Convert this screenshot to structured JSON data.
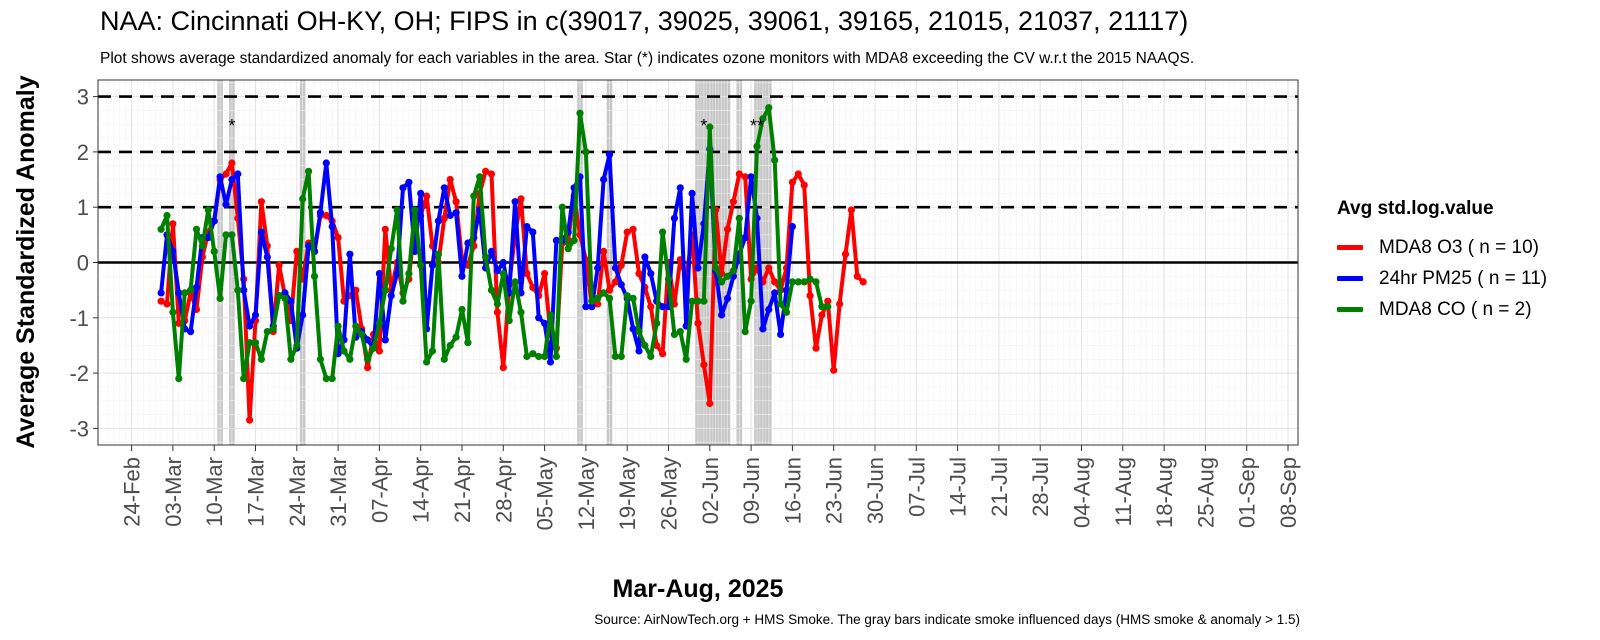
{
  "chart_data": {
    "type": "line",
    "title": "NAA: Cincinnati OH-KY, OH; FIPS in c(39017, 39025, 39061, 39165, 21015, 21037, 21117)",
    "subtitle": "Plot shows average standardized anomaly for each variables in the area. Star (*) indicates ozone monitors with MDA8 exceeding the CV w.r.t the 2015 NAAQS.",
    "caption": "Source: AirNowTech.org + HMS Smoke. The gray bars indicate smoke influenced days (HMS smoke & anomaly > 1.5)",
    "xlabel": "Mar-Aug, 2025",
    "ylabel": "Average Standardized Anomaly",
    "legend_title": "Avg std.log.value",
    "legend_position": "right",
    "ylim": [
      -3.3,
      3.3
    ],
    "xlim": [
      "2025-02-20",
      "2025-09-08"
    ],
    "y_ticks": [
      3,
      2,
      1,
      0,
      -1,
      -2,
      -3
    ],
    "x_ticks": [
      "24-Feb",
      "03-Mar",
      "10-Mar",
      "17-Mar",
      "24-Mar",
      "31-Mar",
      "07-Apr",
      "14-Apr",
      "21-Apr",
      "28-Apr",
      "05-May",
      "12-May",
      "19-May",
      "26-May",
      "02-Jun",
      "09-Jun",
      "16-Jun",
      "23-Jun",
      "30-Jun",
      "07-Jul",
      "14-Jul",
      "21-Jul",
      "28-Jul",
      "04-Aug",
      "11-Aug",
      "18-Aug",
      "25-Aug",
      "01-Sep",
      "08-Sep"
    ],
    "x_tick_dates": [
      "2025-02-24",
      "2025-03-03",
      "2025-03-10",
      "2025-03-17",
      "2025-03-24",
      "2025-03-31",
      "2025-04-07",
      "2025-04-14",
      "2025-04-21",
      "2025-04-28",
      "2025-05-05",
      "2025-05-12",
      "2025-05-19",
      "2025-05-26",
      "2025-06-02",
      "2025-06-09",
      "2025-06-16",
      "2025-06-23",
      "2025-06-30",
      "2025-07-07",
      "2025-07-14",
      "2025-07-21",
      "2025-07-28",
      "2025-08-04",
      "2025-08-11",
      "2025-08-18",
      "2025-08-25",
      "2025-09-01",
      "2025-09-08"
    ],
    "grid": true,
    "dashed_reference_lines": [
      1,
      2,
      3
    ],
    "zero_line": 0,
    "smoke_days": [
      "2025-03-11",
      "2025-03-13",
      "2025-03-25",
      "2025-05-11",
      "2025-05-16",
      "2025-05-31",
      "2025-06-01",
      "2025-06-02",
      "2025-06-03",
      "2025-06-04",
      "2025-06-05",
      "2025-06-07",
      "2025-06-10",
      "2025-06-11",
      "2025-06-12"
    ],
    "star_annotations": [
      {
        "date": "2025-03-13",
        "y": 2.5,
        "text": "*"
      },
      {
        "date": "2025-06-01",
        "y": 2.5,
        "text": "*"
      },
      {
        "date": "2025-06-10",
        "y": 2.5,
        "text": "**"
      }
    ],
    "series": [
      {
        "name": "MDA8 O3 ( n = 10)",
        "color": "#ff0000",
        "start": "2025-03-01",
        "values": [
          -0.7,
          -0.75,
          0.7,
          -1.1,
          -1.05,
          -0.55,
          -0.85,
          0.1,
          0.55,
          0.75,
          1.5,
          1.6,
          1.8,
          0.8,
          -0.3,
          -2.85,
          -1.05,
          1.1,
          0.3,
          -1.25,
          -0.05,
          -0.6,
          -1.05,
          0.2,
          -0.3,
          0.35,
          0.2,
          0.85,
          0.85,
          0.75,
          0.45,
          -0.7,
          -0.6,
          -0.5,
          -1.2,
          -1.9,
          -1.3,
          -1.6,
          0.6,
          -0.5,
          0.0,
          -0.55,
          -0.3,
          0.75,
          0.85,
          1.2,
          0.3,
          0.0,
          0.8,
          1.5,
          1.1,
          0.05,
          -0.05,
          0.3,
          1.25,
          1.65,
          1.6,
          -0.9,
          -1.9,
          -0.4,
          0.5,
          1.15,
          -0.2,
          -0.45,
          -0.6,
          -0.2,
          -1.3,
          -1.55,
          0.35,
          0.4,
          1.2,
          0.5,
          0.05,
          -0.8,
          -0.75,
          0.2,
          -0.5,
          -0.35,
          -0.05,
          0.55,
          0.6,
          -0.2,
          -0.45,
          -0.8,
          -1.5,
          -1.65,
          0.0,
          -0.75,
          0.05,
          -0.3,
          0.5,
          -1.1,
          -1.85,
          -2.55,
          0.95,
          -0.2,
          0.6,
          1.1,
          1.6,
          1.55,
          -0.3,
          -0.1,
          -0.35,
          -0.1,
          -0.35,
          -0.5,
          -0.1,
          1.45,
          1.6,
          1.4,
          -0.6,
          -1.55,
          -0.95,
          -0.7,
          -1.95,
          -0.75,
          0.15,
          0.95,
          -0.25,
          -0.35
        ]
      },
      {
        "name": "24hr PM25 ( n = 11)",
        "color": "#0000ff",
        "start": "2025-03-01",
        "values": [
          -0.55,
          0.5,
          0.2,
          -0.55,
          -1.2,
          -1.25,
          -0.45,
          0.45,
          0.45,
          0.75,
          1.55,
          1.05,
          1.5,
          1.6,
          -0.5,
          -1.15,
          -0.95,
          0.55,
          0.1,
          -1.15,
          -0.6,
          -0.55,
          -0.7,
          -1.55,
          -0.95,
          0.3,
          0.2,
          0.9,
          1.8,
          0.65,
          -1.65,
          -1.4,
          0.15,
          -1.35,
          -1.25,
          -1.4,
          -1.55,
          -0.2,
          -1.4,
          -0.6,
          -0.2,
          1.35,
          1.45,
          0.2,
          1.25,
          -1.2,
          -0.05,
          0.75,
          1.35,
          0.85,
          0.9,
          -0.25,
          0.35,
          0.45,
          0.95,
          -0.1,
          0.2,
          -0.15,
          0.0,
          -0.55,
          1.1,
          -0.55,
          0.65,
          0.55,
          -1.0,
          -1.1,
          -1.8,
          0.4,
          0.4,
          0.55,
          1.35,
          1.55,
          -0.8,
          -0.8,
          -0.1,
          1.5,
          1.95,
          -0.1,
          -0.4,
          -0.65,
          -1.2,
          -1.6,
          0.1,
          -0.2,
          -0.7,
          -0.8,
          -0.8,
          0.8,
          1.35,
          -1.15,
          1.25,
          -0.1,
          0.7,
          2.05,
          -0.15,
          -0.95,
          -0.65,
          -0.25,
          0.15,
          0.45,
          1.55,
          0.8,
          -1.2,
          -0.85,
          -0.55,
          -1.3,
          -0.5,
          0.65
        ]
      },
      {
        "name": "MDA8 CO ( n = 2)",
        "color": "#008000",
        "start": "2025-03-01",
        "values": [
          0.6,
          0.85,
          -0.9,
          -2.1,
          -0.55,
          -0.5,
          0.6,
          0.3,
          0.95,
          0.2,
          -0.65,
          0.5,
          0.5,
          -0.5,
          -2.1,
          -1.45,
          -1.45,
          -1.75,
          -1.25,
          -1.2,
          -0.6,
          -0.65,
          -1.75,
          -1.5,
          1.15,
          1.65,
          -0.25,
          -1.75,
          -2.1,
          -2.1,
          -1.15,
          -1.6,
          -1.75,
          -1.15,
          -1.3,
          -1.75,
          -1.55,
          -1.1,
          -0.5,
          0.25,
          0.95,
          -0.7,
          -0.2,
          0.95,
          -0.05,
          -1.8,
          -1.6,
          0.15,
          -1.75,
          -1.5,
          -1.35,
          -0.85,
          -1.45,
          1.2,
          1.55,
          0.1,
          -0.5,
          -0.75,
          -0.2,
          -1.05,
          -0.35,
          -0.9,
          -1.7,
          -1.65,
          -1.7,
          -1.7,
          -0.95,
          -1.7,
          1.0,
          0.25,
          0.4,
          2.7,
          2.0,
          -0.7,
          -0.65,
          -0.55,
          -0.65,
          -1.7,
          -1.7,
          -0.6,
          -0.65,
          -1.25,
          -1.5,
          -1.7,
          -1.1,
          0.55,
          -0.3,
          -1.3,
          -1.25,
          -1.75,
          -0.7,
          -0.7,
          -0.7,
          2.45,
          -0.1,
          -0.35,
          -0.25,
          -0.15,
          0.8,
          -1.25,
          -0.7,
          2.1,
          2.6,
          2.8,
          1.85,
          -0.75,
          -0.9,
          -0.35,
          -0.35,
          -0.35,
          -0.3,
          -0.35,
          -0.8,
          -0.8
        ],
        "offsets_note": ""
      }
    ]
  }
}
